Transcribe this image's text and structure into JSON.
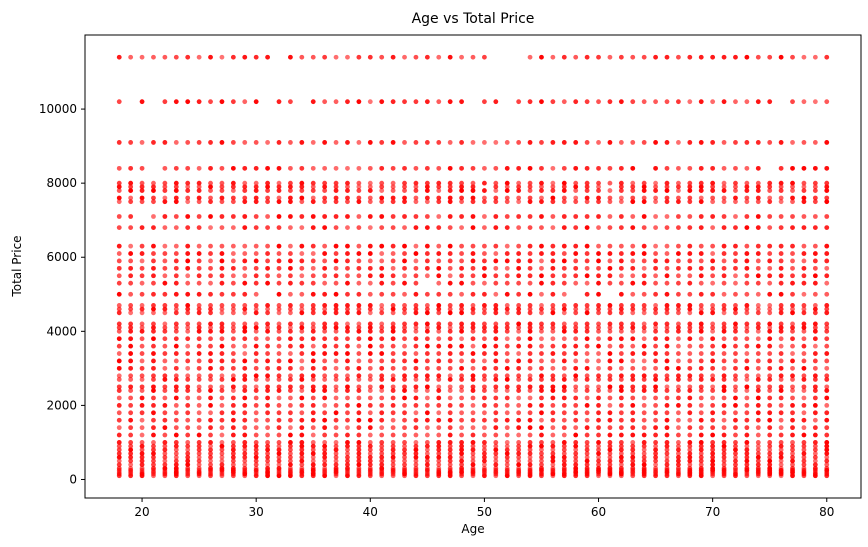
{
  "chart_data": {
    "type": "scatter",
    "title": "Age vs Total Price",
    "xlabel": "Age",
    "ylabel": "Total Price",
    "xlim": [
      15,
      83
    ],
    "ylim": [
      -500,
      12000
    ],
    "xticks": [
      20,
      30,
      40,
      50,
      60,
      70,
      80
    ],
    "yticks": [
      0,
      2000,
      4000,
      6000,
      8000,
      10000
    ],
    "grid": false,
    "legend": "none",
    "marker_color": "#ff0000",
    "series": [
      {
        "x_range": [
          18,
          80
        ],
        "x_step": 1,
        "y_levels": [
          100,
          150,
          200,
          250,
          300,
          400,
          500,
          600,
          700,
          800,
          900,
          1000,
          1200,
          1400,
          1600,
          1800,
          2000,
          2200,
          2400,
          2500,
          2700,
          2800,
          3000,
          3200,
          3400,
          3600,
          3800,
          4000,
          4100,
          4200,
          4500,
          4600,
          4700,
          5000,
          5300,
          5500,
          5700,
          5900,
          6100,
          6300,
          6800,
          7100,
          7500,
          7600,
          7800,
          7900,
          8000,
          8400,
          9100,
          10200,
          11400
        ],
        "missing_points": [
          [
            51,
            11400
          ],
          [
            52,
            11400
          ],
          [
            53,
            11400
          ],
          [
            32,
            11400
          ],
          [
            19,
            10200
          ],
          [
            21,
            10200
          ],
          [
            31,
            10200
          ],
          [
            34,
            10200
          ],
          [
            49,
            10200
          ],
          [
            52,
            10200
          ],
          [
            76,
            10200
          ],
          [
            21,
            8400
          ],
          [
            64,
            8400
          ],
          [
            75,
            8400
          ],
          [
            20,
            7100
          ],
          [
            50,
            7900
          ],
          [
            61,
            7900
          ],
          [
            58,
            5000
          ],
          [
            61,
            5000
          ],
          [
            31,
            5000
          ],
          [
            45,
            5300
          ]
        ]
      }
    ]
  }
}
